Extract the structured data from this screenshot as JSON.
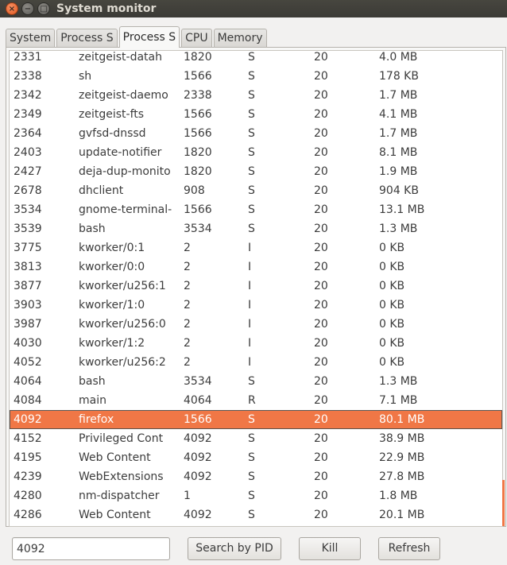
{
  "window": {
    "title": "System monitor",
    "close_glyph": "×",
    "minimize_glyph": "−",
    "maximize_glyph": "□"
  },
  "tabs": [
    {
      "label": "System"
    },
    {
      "label": "Process S"
    },
    {
      "label": "Process S"
    },
    {
      "label": "CPU"
    },
    {
      "label": "Memory"
    }
  ],
  "active_tab_index": 2,
  "processes": [
    {
      "pid": "2331",
      "name": "zeitgeist-datah",
      "ppid": "1820",
      "state": "S",
      "priority": "20",
      "memory": "4.0 MB"
    },
    {
      "pid": "2338",
      "name": "sh",
      "ppid": "1566",
      "state": "S",
      "priority": "20",
      "memory": "178 KB"
    },
    {
      "pid": "2342",
      "name": "zeitgeist-daemo",
      "ppid": "2338",
      "state": "S",
      "priority": "20",
      "memory": "1.7 MB"
    },
    {
      "pid": "2349",
      "name": "zeitgeist-fts",
      "ppid": "1566",
      "state": "S",
      "priority": "20",
      "memory": "4.1 MB"
    },
    {
      "pid": "2364",
      "name": "gvfsd-dnssd",
      "ppid": "1566",
      "state": "S",
      "priority": "20",
      "memory": "1.7 MB"
    },
    {
      "pid": "2403",
      "name": "update-notifier",
      "ppid": "1820",
      "state": "S",
      "priority": "20",
      "memory": "8.1 MB"
    },
    {
      "pid": "2427",
      "name": "deja-dup-monito",
      "ppid": "1820",
      "state": "S",
      "priority": "20",
      "memory": "1.9 MB"
    },
    {
      "pid": "2678",
      "name": "dhclient",
      "ppid": "908",
      "state": "S",
      "priority": "20",
      "memory": "904 KB"
    },
    {
      "pid": "3534",
      "name": "gnome-terminal-",
      "ppid": "1566",
      "state": "S",
      "priority": "20",
      "memory": "13.1 MB"
    },
    {
      "pid": "3539",
      "name": "bash",
      "ppid": "3534",
      "state": "S",
      "priority": "20",
      "memory": "1.3 MB"
    },
    {
      "pid": "3775",
      "name": "kworker/0:1",
      "ppid": "2",
      "state": "I",
      "priority": "20",
      "memory": "0 KB"
    },
    {
      "pid": "3813",
      "name": "kworker/0:0",
      "ppid": "2",
      "state": "I",
      "priority": "20",
      "memory": "0 KB"
    },
    {
      "pid": "3877",
      "name": "kworker/u256:1",
      "ppid": "2",
      "state": "I",
      "priority": "20",
      "memory": "0 KB"
    },
    {
      "pid": "3903",
      "name": "kworker/1:0",
      "ppid": "2",
      "state": "I",
      "priority": "20",
      "memory": "0 KB"
    },
    {
      "pid": "3987",
      "name": "kworker/u256:0",
      "ppid": "2",
      "state": "I",
      "priority": "20",
      "memory": "0 KB"
    },
    {
      "pid": "4030",
      "name": "kworker/1:2",
      "ppid": "2",
      "state": "I",
      "priority": "20",
      "memory": "0 KB"
    },
    {
      "pid": "4052",
      "name": "kworker/u256:2",
      "ppid": "2",
      "state": "I",
      "priority": "20",
      "memory": "0 KB"
    },
    {
      "pid": "4064",
      "name": "bash",
      "ppid": "3534",
      "state": "S",
      "priority": "20",
      "memory": "1.3 MB"
    },
    {
      "pid": "4084",
      "name": "main",
      "ppid": "4064",
      "state": "R",
      "priority": "20",
      "memory": "7.1 MB"
    },
    {
      "pid": "4092",
      "name": "firefox",
      "ppid": "1566",
      "state": "S",
      "priority": "20",
      "memory": "80.1 MB"
    },
    {
      "pid": "4152",
      "name": "Privileged Cont",
      "ppid": "4092",
      "state": "S",
      "priority": "20",
      "memory": "38.9 MB"
    },
    {
      "pid": "4195",
      "name": "Web Content",
      "ppid": "4092",
      "state": "S",
      "priority": "20",
      "memory": "22.9 MB"
    },
    {
      "pid": "4239",
      "name": "WebExtensions",
      "ppid": "4092",
      "state": "S",
      "priority": "20",
      "memory": "27.8 MB"
    },
    {
      "pid": "4280",
      "name": "nm-dispatcher",
      "ppid": "1",
      "state": "S",
      "priority": "20",
      "memory": "1.8 MB"
    },
    {
      "pid": "4286",
      "name": "Web Content",
      "ppid": "4092",
      "state": "S",
      "priority": "20",
      "memory": "20.1 MB"
    }
  ],
  "selected_pid": "4092",
  "controls": {
    "pid_input_value": "4092",
    "search_button": "Search by PID",
    "kill_button": "Kill",
    "refresh_button": "Refresh"
  },
  "colors": {
    "selection": "#f07746",
    "titlebar": "#3c3b37",
    "window_bg": "#f2f1f0"
  }
}
